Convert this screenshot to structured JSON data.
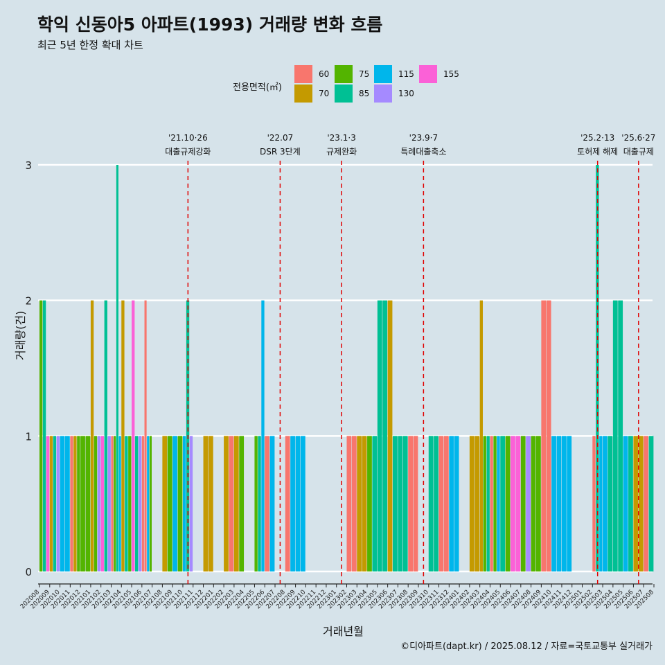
{
  "header": {
    "title": "학익 신동아5 아파트(1993) 거래량 변화 흐름",
    "subtitle": "최근 5년 한정 확대 차트"
  },
  "legend": {
    "title": "전용면적(㎡)",
    "items": [
      {
        "label": "60",
        "color": "#F8766D"
      },
      {
        "label": "70",
        "color": "#C49A00"
      },
      {
        "label": "75",
        "color": "#53B400"
      },
      {
        "label": "85",
        "color": "#00C094"
      },
      {
        "label": "115",
        "color": "#00B6EB"
      },
      {
        "label": "130",
        "color": "#A58AFF"
      },
      {
        "label": "155",
        "color": "#FB61D7"
      }
    ]
  },
  "caption": "©디아파트(dapt.kr) / 2025.08.12 / 자료=국토교통부 실거래가",
  "chart_data": {
    "type": "bar",
    "title": "학익 신동아5 아파트(1993) 거래량 변화 흐름",
    "subtitle": "최근 5년 한정 확대 차트",
    "xlabel": "거래년월",
    "ylabel": "거래량(건)",
    "ylim": [
      0,
      3
    ],
    "y_ticks": [
      0,
      1,
      2,
      3
    ],
    "grid": "horizontal",
    "legend_position": "top",
    "categories": [
      "202008",
      "202009",
      "202010",
      "202011",
      "202012",
      "202101",
      "202102",
      "202103",
      "202104",
      "202105",
      "202106",
      "202107",
      "202108",
      "202109",
      "202110",
      "202111",
      "202112",
      "202201",
      "202202",
      "202203",
      "202204",
      "202205",
      "202206",
      "202207",
      "202208",
      "202209",
      "202210",
      "202211",
      "202212",
      "202301",
      "202302",
      "202303",
      "202304",
      "202305",
      "202306",
      "202307",
      "202308",
      "202309",
      "202310",
      "202311",
      "202312",
      "202401",
      "202402",
      "202403",
      "202404",
      "202405",
      "202406",
      "202407",
      "202408",
      "202409",
      "202410",
      "202411",
      "202412",
      "202501",
      "202502",
      "202503",
      "202504",
      "202505",
      "202506",
      "202507",
      "202508"
    ],
    "transactions": [
      {
        "month": "202008",
        "segments": [
          [
            "75",
            2
          ],
          [
            "85",
            2
          ],
          [
            "155",
            1
          ]
        ]
      },
      {
        "month": "202009",
        "segments": [
          [
            "70",
            1
          ],
          [
            "85",
            1
          ],
          [
            "130",
            1
          ]
        ]
      },
      {
        "month": "202010",
        "segments": [
          [
            "115",
            1
          ],
          [
            "115",
            1
          ]
        ]
      },
      {
        "month": "202011",
        "segments": [
          [
            "60",
            1
          ],
          [
            "70",
            1
          ],
          [
            "75",
            1
          ]
        ]
      },
      {
        "month": "202012",
        "segments": [
          [
            "75",
            1
          ],
          [
            "75",
            1
          ]
        ]
      },
      {
        "month": "202101",
        "segments": [
          [
            "70",
            2
          ],
          [
            "75",
            1
          ],
          [
            "130",
            1
          ]
        ]
      },
      {
        "month": "202102",
        "segments": [
          [
            "155",
            1
          ],
          [
            "85",
            2
          ],
          [
            "130",
            1
          ]
        ]
      },
      {
        "month": "202103",
        "segments": [
          [
            "60",
            1
          ],
          [
            "75",
            1
          ],
          [
            "85",
            3
          ],
          [
            "115",
            1
          ]
        ]
      },
      {
        "month": "202104",
        "segments": [
          [
            "70",
            2
          ],
          [
            "85",
            1
          ],
          [
            "75",
            1
          ]
        ]
      },
      {
        "month": "202105",
        "segments": [
          [
            "155",
            2
          ],
          [
            "85",
            1
          ],
          [
            "130",
            1
          ]
        ]
      },
      {
        "month": "202106",
        "segments": [
          [
            "60",
            1
          ],
          [
            "60",
            2
          ],
          [
            "115",
            1
          ],
          [
            "75",
            1
          ]
        ]
      },
      {
        "month": "202108",
        "segments": [
          [
            "70",
            1
          ],
          [
            "75",
            1
          ]
        ]
      },
      {
        "month": "202109",
        "segments": [
          [
            "115",
            1
          ],
          [
            "75",
            1
          ]
        ]
      },
      {
        "month": "202110",
        "segments": [
          [
            "115",
            1
          ],
          [
            "85",
            2
          ],
          [
            "130",
            1
          ]
        ]
      },
      {
        "month": "202112",
        "segments": [
          [
            "70",
            1
          ],
          [
            "70",
            1
          ]
        ]
      },
      {
        "month": "202202",
        "segments": [
          [
            "70",
            1
          ],
          [
            "60",
            1
          ]
        ]
      },
      {
        "month": "202203",
        "segments": [
          [
            "70",
            1
          ],
          [
            "75",
            1
          ]
        ]
      },
      {
        "month": "202205",
        "segments": [
          [
            "75",
            1
          ],
          [
            "85",
            1
          ],
          [
            "115",
            2
          ]
        ]
      },
      {
        "month": "202206",
        "segments": [
          [
            "60",
            1
          ],
          [
            "115",
            1
          ]
        ]
      },
      {
        "month": "202208",
        "segments": [
          [
            "60",
            1
          ],
          [
            "115",
            1
          ]
        ]
      },
      {
        "month": "202209",
        "segments": [
          [
            "115",
            1
          ],
          [
            "115",
            1
          ]
        ]
      },
      {
        "month": "202302",
        "segments": [
          [
            "60",
            1
          ],
          [
            "60",
            1
          ]
        ]
      },
      {
        "month": "202303",
        "segments": [
          [
            "70",
            1
          ],
          [
            "70",
            1
          ]
        ]
      },
      {
        "month": "202304",
        "segments": [
          [
            "75",
            1
          ],
          [
            "85",
            1
          ]
        ]
      },
      {
        "month": "202305",
        "segments": [
          [
            "85",
            2
          ],
          [
            "85",
            2
          ]
        ]
      },
      {
        "month": "202306",
        "segments": [
          [
            "70",
            2
          ],
          [
            "85",
            1
          ]
        ]
      },
      {
        "month": "202307",
        "segments": [
          [
            "85",
            1
          ],
          [
            "85",
            1
          ]
        ]
      },
      {
        "month": "202308",
        "segments": [
          [
            "60",
            1
          ],
          [
            "60",
            1
          ]
        ]
      },
      {
        "month": "202310",
        "segments": [
          [
            "85",
            1
          ],
          [
            "85",
            1
          ]
        ]
      },
      {
        "month": "202311",
        "segments": [
          [
            "60",
            1
          ],
          [
            "60",
            1
          ]
        ]
      },
      {
        "month": "202312",
        "segments": [
          [
            "115",
            1
          ],
          [
            "115",
            1
          ]
        ]
      },
      {
        "month": "202402",
        "segments": [
          [
            "70",
            1
          ],
          [
            "70",
            1
          ]
        ]
      },
      {
        "month": "202403",
        "segments": [
          [
            "70",
            2
          ],
          [
            "75",
            1
          ],
          [
            "85",
            1
          ]
        ]
      },
      {
        "month": "202404",
        "segments": [
          [
            "60",
            1
          ],
          [
            "75",
            1
          ],
          [
            "115",
            1
          ]
        ]
      },
      {
        "month": "202405",
        "segments": [
          [
            "85",
            1
          ],
          [
            "75",
            1
          ]
        ]
      },
      {
        "month": "202406",
        "segments": [
          [
            "155",
            1
          ],
          [
            "155",
            1
          ]
        ]
      },
      {
        "month": "202407",
        "segments": [
          [
            "75",
            1
          ],
          [
            "130",
            1
          ]
        ]
      },
      {
        "month": "202408",
        "segments": [
          [
            "75",
            1
          ],
          [
            "75",
            1
          ]
        ]
      },
      {
        "month": "202409",
        "segments": [
          [
            "60",
            2
          ],
          [
            "60",
            2
          ]
        ]
      },
      {
        "month": "202410",
        "segments": [
          [
            "115",
            1
          ],
          [
            "115",
            1
          ]
        ]
      },
      {
        "month": "202411",
        "segments": [
          [
            "115",
            1
          ],
          [
            "115",
            1
          ]
        ]
      },
      {
        "month": "202502",
        "segments": [
          [
            "60",
            1
          ],
          [
            "85",
            3
          ],
          [
            "115",
            1
          ]
        ]
      },
      {
        "month": "202503",
        "segments": [
          [
            "115",
            1
          ],
          [
            "85",
            1
          ]
        ]
      },
      {
        "month": "202504",
        "segments": [
          [
            "85",
            2
          ],
          [
            "85",
            2
          ]
        ]
      },
      {
        "month": "202505",
        "segments": [
          [
            "115",
            1
          ],
          [
            "85",
            1
          ]
        ]
      },
      {
        "month": "202506",
        "segments": [
          [
            "70",
            1
          ],
          [
            "70",
            1
          ]
        ]
      },
      {
        "month": "202507",
        "segments": [
          [
            "60",
            1
          ],
          [
            "85",
            1
          ]
        ]
      }
    ],
    "events": [
      {
        "month": "202110",
        "date": "'21.10·26",
        "label": "대출규제강화"
      },
      {
        "month": "202207",
        "date": "'22.07",
        "label": "DSR 3단계"
      },
      {
        "month": "202301",
        "date": "'23.1·3",
        "label": "규제완화"
      },
      {
        "month": "202309",
        "date": "'23.9·7",
        "label": "특례대출축소"
      },
      {
        "month": "202502",
        "date": "'25.2·13",
        "label": "토허제 해제"
      },
      {
        "month": "202506",
        "date": "'25.6·27",
        "label": "대출규제"
      }
    ]
  }
}
